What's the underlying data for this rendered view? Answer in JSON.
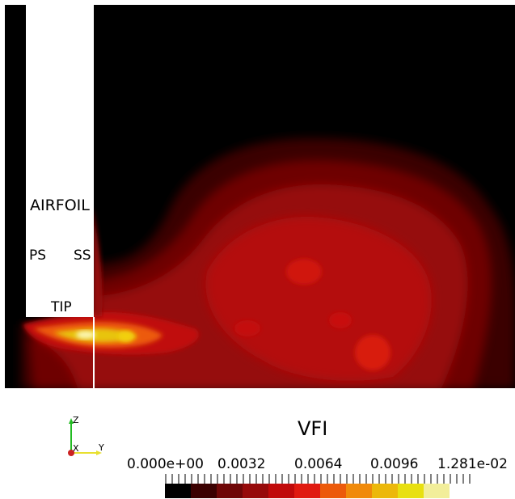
{
  "labels": {
    "airfoil": "AIRFOIL",
    "ps": "PS",
    "ss": "SS",
    "tip": "TIP"
  },
  "axes": {
    "z": "Z",
    "x": "X",
    "y": "Y"
  },
  "legend": {
    "title": "VFI",
    "ticks": [
      "0.000e+00",
      "0.0032",
      "0.0064",
      "0.0096",
      "1.281e-02"
    ],
    "colors": [
      "#000000",
      "#3a0000",
      "#6e0606",
      "#960a0a",
      "#c00a0a",
      "#e01a10",
      "#ec5a0a",
      "#f08a0a",
      "#ecb80a",
      "#e8e010",
      "#f2ee9a"
    ]
  }
}
